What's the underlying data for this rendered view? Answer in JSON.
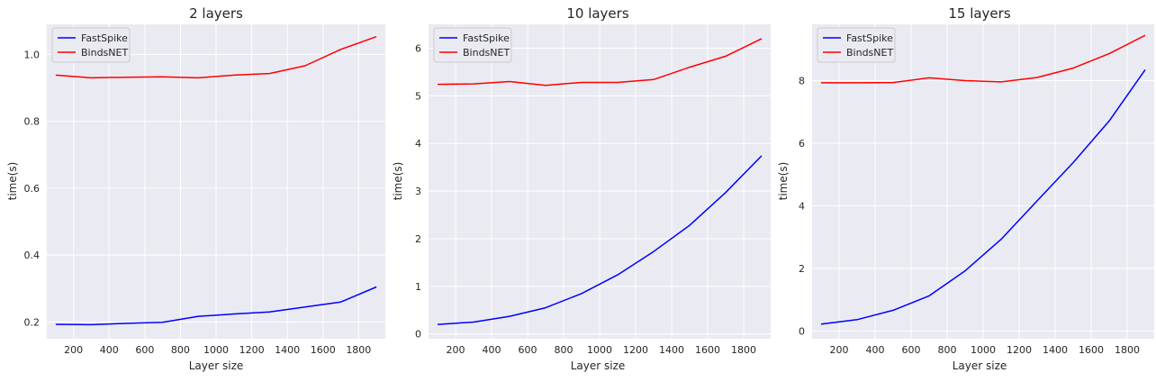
{
  "chart_data": [
    {
      "type": "line",
      "title": "2 layers",
      "xlabel": "Layer size",
      "ylabel": "time(s)",
      "xlim": [
        50,
        1950
      ],
      "ylim": [
        0.15,
        1.09
      ],
      "xticks": [
        200,
        400,
        600,
        800,
        1000,
        1200,
        1400,
        1600,
        1800
      ],
      "xtick_labels": [
        "200",
        "400",
        "600",
        "800",
        "1000",
        "1200",
        "1400",
        "1600",
        "1800"
      ],
      "yticks": [
        0.2,
        0.4,
        0.6,
        0.8,
        1.0
      ],
      "ytick_labels": [
        "0.2",
        "0.4",
        "0.6",
        "0.8",
        "1.0"
      ],
      "grid": true,
      "legend_position": "top-left",
      "x": [
        100,
        300,
        500,
        700,
        900,
        1100,
        1300,
        1500,
        1700,
        1900
      ],
      "series": [
        {
          "name": "FastSpike",
          "color": "#0000ff",
          "values": [
            0.193,
            0.192,
            0.196,
            0.199,
            0.217,
            0.224,
            0.23,
            0.245,
            0.26,
            0.305
          ]
        },
        {
          "name": "BindsNET",
          "color": "#ff0000",
          "values": [
            0.938,
            0.93,
            0.932,
            0.933,
            0.93,
            0.938,
            0.943,
            0.966,
            1.015,
            1.053
          ]
        }
      ]
    },
    {
      "type": "line",
      "title": "10 layers",
      "xlabel": "Layer size",
      "ylabel": "time(s)",
      "xlim": [
        50,
        1950
      ],
      "ylim": [
        -0.1,
        6.5
      ],
      "xticks": [
        200,
        400,
        600,
        800,
        1000,
        1200,
        1400,
        1600,
        1800
      ],
      "xtick_labels": [
        "200",
        "400",
        "600",
        "800",
        "1000",
        "1200",
        "1400",
        "1600",
        "1800"
      ],
      "yticks": [
        0,
        1,
        2,
        3,
        4,
        5,
        6
      ],
      "ytick_labels": [
        "0",
        "1",
        "2",
        "3",
        "4",
        "5",
        "6"
      ],
      "grid": true,
      "legend_position": "top-left",
      "x": [
        100,
        300,
        500,
        700,
        900,
        1100,
        1300,
        1500,
        1700,
        1900
      ],
      "series": [
        {
          "name": "FastSpike",
          "color": "#0000ff",
          "values": [
            0.2,
            0.25,
            0.37,
            0.55,
            0.85,
            1.24,
            1.73,
            2.28,
            2.97,
            3.74
          ]
        },
        {
          "name": "BindsNET",
          "color": "#ff0000",
          "values": [
            5.24,
            5.25,
            5.3,
            5.22,
            5.28,
            5.28,
            5.34,
            5.6,
            5.83,
            6.2
          ]
        }
      ]
    },
    {
      "type": "line",
      "title": "15 layers",
      "xlabel": "Layer size",
      "ylabel": "time(s)",
      "xlim": [
        50,
        1950
      ],
      "ylim": [
        -0.25,
        9.8
      ],
      "xticks": [
        200,
        400,
        600,
        800,
        1000,
        1200,
        1400,
        1600,
        1800
      ],
      "xtick_labels": [
        "200",
        "400",
        "600",
        "800",
        "1000",
        "1200",
        "1400",
        "1600",
        "1800"
      ],
      "yticks": [
        0,
        2,
        4,
        6,
        8
      ],
      "ytick_labels": [
        "0",
        "2",
        "4",
        "6",
        "8"
      ],
      "grid": true,
      "legend_position": "top-left",
      "x": [
        100,
        300,
        500,
        700,
        900,
        1100,
        1300,
        1500,
        1700,
        1900
      ],
      "series": [
        {
          "name": "FastSpike",
          "color": "#0000ff",
          "values": [
            0.22,
            0.36,
            0.66,
            1.12,
            1.92,
            2.93,
            4.16,
            5.38,
            6.71,
            8.35
          ]
        },
        {
          "name": "BindsNET",
          "color": "#ff0000",
          "values": [
            7.93,
            7.93,
            7.94,
            8.09,
            8.0,
            7.96,
            8.1,
            8.4,
            8.86,
            9.45
          ]
        }
      ]
    }
  ],
  "colors": {
    "plot_background": "#eaeaf2",
    "grid": "#ffffff",
    "text": "#262626"
  }
}
